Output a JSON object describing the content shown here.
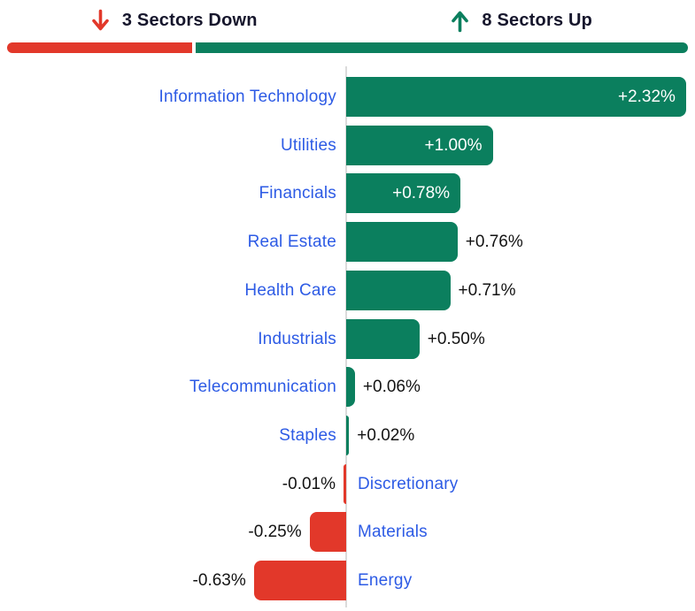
{
  "header": {
    "down": {
      "count": "3",
      "label": "Sectors Down",
      "icon": "arrow-down",
      "color": "#E2382A"
    },
    "up": {
      "count": "8",
      "label": "Sectors Up",
      "icon": "arrow-up",
      "color": "#0B7F5E"
    }
  },
  "colors": {
    "positive_bar": "#0B7F5E",
    "negative_bar": "#E2382A",
    "sector_link_blue": "#2D5BE5",
    "header_text": "#16162C",
    "value_text": "#131313",
    "baseline_gray": "#DBDBDB"
  },
  "chart_data": {
    "type": "bar",
    "orientation": "horizontal",
    "unit": "%",
    "title": "",
    "xlabel": "",
    "ylabel": "",
    "xlim": [
      -0.75,
      2.4
    ],
    "grid": false,
    "summary": {
      "sectors_down": 3,
      "sectors_up": 8,
      "total_sectors": 11
    },
    "categories": [
      "Information Technology",
      "Utilities",
      "Financials",
      "Real Estate",
      "Health Care",
      "Industrials",
      "Telecommunication",
      "Staples",
      "Discretionary",
      "Materials",
      "Energy"
    ],
    "values": [
      2.32,
      1.0,
      0.78,
      0.76,
      0.71,
      0.5,
      0.06,
      0.02,
      -0.01,
      -0.25,
      -0.63
    ],
    "sectors": [
      {
        "name": "Information Technology",
        "value": 2.32,
        "label": "+2.32%"
      },
      {
        "name": "Utilities",
        "value": 1.0,
        "label": "+1.00%"
      },
      {
        "name": "Financials",
        "value": 0.78,
        "label": "+0.78%"
      },
      {
        "name": "Real Estate",
        "value": 0.76,
        "label": "+0.76%"
      },
      {
        "name": "Health Care",
        "value": 0.71,
        "label": "+0.71%"
      },
      {
        "name": "Industrials",
        "value": 0.5,
        "label": "+0.50%"
      },
      {
        "name": "Telecommunication",
        "value": 0.06,
        "label": "+0.06%"
      },
      {
        "name": "Staples",
        "value": 0.02,
        "label": "+0.02%"
      },
      {
        "name": "Discretionary",
        "value": -0.01,
        "label": "-0.01%"
      },
      {
        "name": "Materials",
        "value": -0.25,
        "label": "-0.25%"
      },
      {
        "name": "Energy",
        "value": -0.63,
        "label": "-0.63%"
      }
    ]
  }
}
